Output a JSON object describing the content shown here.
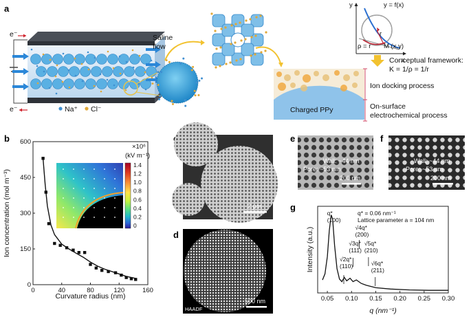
{
  "panels": {
    "a": {
      "label": "a",
      "electron_in": "e⁻",
      "electron_out": "e⁻",
      "saline_flow": "Saline\nflow",
      "legend_na": "Na⁺",
      "legend_cl": "Cl⁻",
      "graph_y": "y",
      "graph_x": "x",
      "graph_func": "y = f(x)",
      "graph_r": "r",
      "graph_rho": "ρ = r",
      "graph_point": "M (x,y)",
      "framework_line1": "Conceptual framework:",
      "framework_line2": "K = 1/ρ = 1/r",
      "ion_docking": "Ion docking process",
      "onsurface_line1": "On-surface",
      "onsurface_line2": "electrochemical process",
      "charged_ppy": "Charged PPy"
    },
    "b": {
      "label": "b",
      "colorbar_scale": "×10⁶",
      "colorbar_unit": "(kV m⁻¹)",
      "colorbar_ticks": [
        "1.4",
        "1.2",
        "1.0",
        "0.8",
        "0.6",
        "0.4",
        "0.2",
        "0"
      ],
      "colorbar_colors": [
        "#a50026",
        "#e03a20",
        "#f98e36",
        "#ffe04a",
        "#c7f43e",
        "#5ee27c",
        "#1fb8c8",
        "#2c66d8",
        "#2b1a9b"
      ]
    },
    "c": {
      "label": "c",
      "scale": "2 μm"
    },
    "d": {
      "label": "d",
      "scale": "500 nm",
      "mode": "HAADF"
    },
    "e": {
      "label": "e",
      "wall": "Wall: ~44 nm",
      "pore": "Pore: ~53 nm",
      "scale": "200 nm"
    },
    "f": {
      "label": "f",
      "wall": "Wall: ~44 nm",
      "pore": "Pore: ~53 nm",
      "scale": "200 nm"
    },
    "g": {
      "label": "g",
      "note_line1": "q* = 0.06 nm⁻¹",
      "note_line2": "Lattice parameter a = 104 nm",
      "peaks": [
        {
          "q": "q*",
          "hkl": "(100)"
        },
        {
          "q": "√2q*",
          "hkl": "(110)"
        },
        {
          "q": "√3q*",
          "hkl": "(111)"
        },
        {
          "q": "√4q*",
          "hkl": "(200)"
        },
        {
          "q": "√5q*",
          "hkl": "(210)"
        },
        {
          "q": "√6q*",
          "hkl": "(211)"
        }
      ]
    }
  },
  "chart_data": [
    {
      "type": "scatter",
      "panel": "b",
      "xlabel": "Curvature radius (nm)",
      "ylabel": "Ion concentration (mol m⁻³)",
      "xlim": [
        0,
        160
      ],
      "ylim": [
        0,
        600
      ],
      "xticks": [
        "0",
        "40",
        "80",
        "120",
        "160"
      ],
      "yticks": [
        "0",
        "150",
        "300",
        "450",
        "600"
      ],
      "points": [
        {
          "x": 14,
          "y": 530
        },
        {
          "x": 18,
          "y": 388
        },
        {
          "x": 22,
          "y": 256
        },
        {
          "x": 30,
          "y": 173
        },
        {
          "x": 38,
          "y": 165
        },
        {
          "x": 47,
          "y": 155
        },
        {
          "x": 56,
          "y": 145
        },
        {
          "x": 64,
          "y": 135
        },
        {
          "x": 72,
          "y": 135
        },
        {
          "x": 80,
          "y": 85
        },
        {
          "x": 88,
          "y": 70
        },
        {
          "x": 96,
          "y": 60
        },
        {
          "x": 105,
          "y": 55
        },
        {
          "x": 115,
          "y": 50
        },
        {
          "x": 123,
          "y": 40
        },
        {
          "x": 130,
          "y": 30
        },
        {
          "x": 137,
          "y": 25
        },
        {
          "x": 143,
          "y": 22
        }
      ],
      "fit": [
        {
          "x": 14,
          "y": 530
        },
        {
          "x": 17,
          "y": 420
        },
        {
          "x": 20,
          "y": 330
        },
        {
          "x": 25,
          "y": 250
        },
        {
          "x": 30,
          "y": 210
        },
        {
          "x": 40,
          "y": 170
        },
        {
          "x": 50,
          "y": 150
        },
        {
          "x": 60,
          "y": 132
        },
        {
          "x": 70,
          "y": 115
        },
        {
          "x": 80,
          "y": 95
        },
        {
          "x": 90,
          "y": 78
        },
        {
          "x": 100,
          "y": 65
        },
        {
          "x": 110,
          "y": 55
        },
        {
          "x": 120,
          "y": 45
        },
        {
          "x": 130,
          "y": 35
        },
        {
          "x": 145,
          "y": 25
        }
      ]
    },
    {
      "type": "line",
      "panel": "g",
      "xlabel": "q (nm⁻¹)",
      "ylabel": "Intensity (a.u.)",
      "xlim": [
        0.03,
        0.3
      ],
      "xticks": [
        "0.05",
        "0.10",
        "0.15",
        "0.20",
        "0.25",
        "0.30"
      ],
      "points": [
        {
          "x": 0.04,
          "y": 0.15
        },
        {
          "x": 0.045,
          "y": 0.22
        },
        {
          "x": 0.05,
          "y": 0.42
        },
        {
          "x": 0.054,
          "y": 0.72
        },
        {
          "x": 0.058,
          "y": 0.9
        },
        {
          "x": 0.061,
          "y": 0.85
        },
        {
          "x": 0.065,
          "y": 0.55
        },
        {
          "x": 0.07,
          "y": 0.28
        },
        {
          "x": 0.075,
          "y": 0.16
        },
        {
          "x": 0.08,
          "y": 0.13
        },
        {
          "x": 0.085,
          "y": 0.18
        },
        {
          "x": 0.09,
          "y": 0.14
        },
        {
          "x": 0.097,
          "y": 0.17
        },
        {
          "x": 0.103,
          "y": 0.13
        },
        {
          "x": 0.11,
          "y": 0.15
        },
        {
          "x": 0.12,
          "y": 0.11
        },
        {
          "x": 0.13,
          "y": 0.09
        },
        {
          "x": 0.15,
          "y": 0.06
        },
        {
          "x": 0.18,
          "y": 0.045
        },
        {
          "x": 0.22,
          "y": 0.035
        },
        {
          "x": 0.26,
          "y": 0.03
        },
        {
          "x": 0.3,
          "y": 0.03
        }
      ]
    }
  ]
}
